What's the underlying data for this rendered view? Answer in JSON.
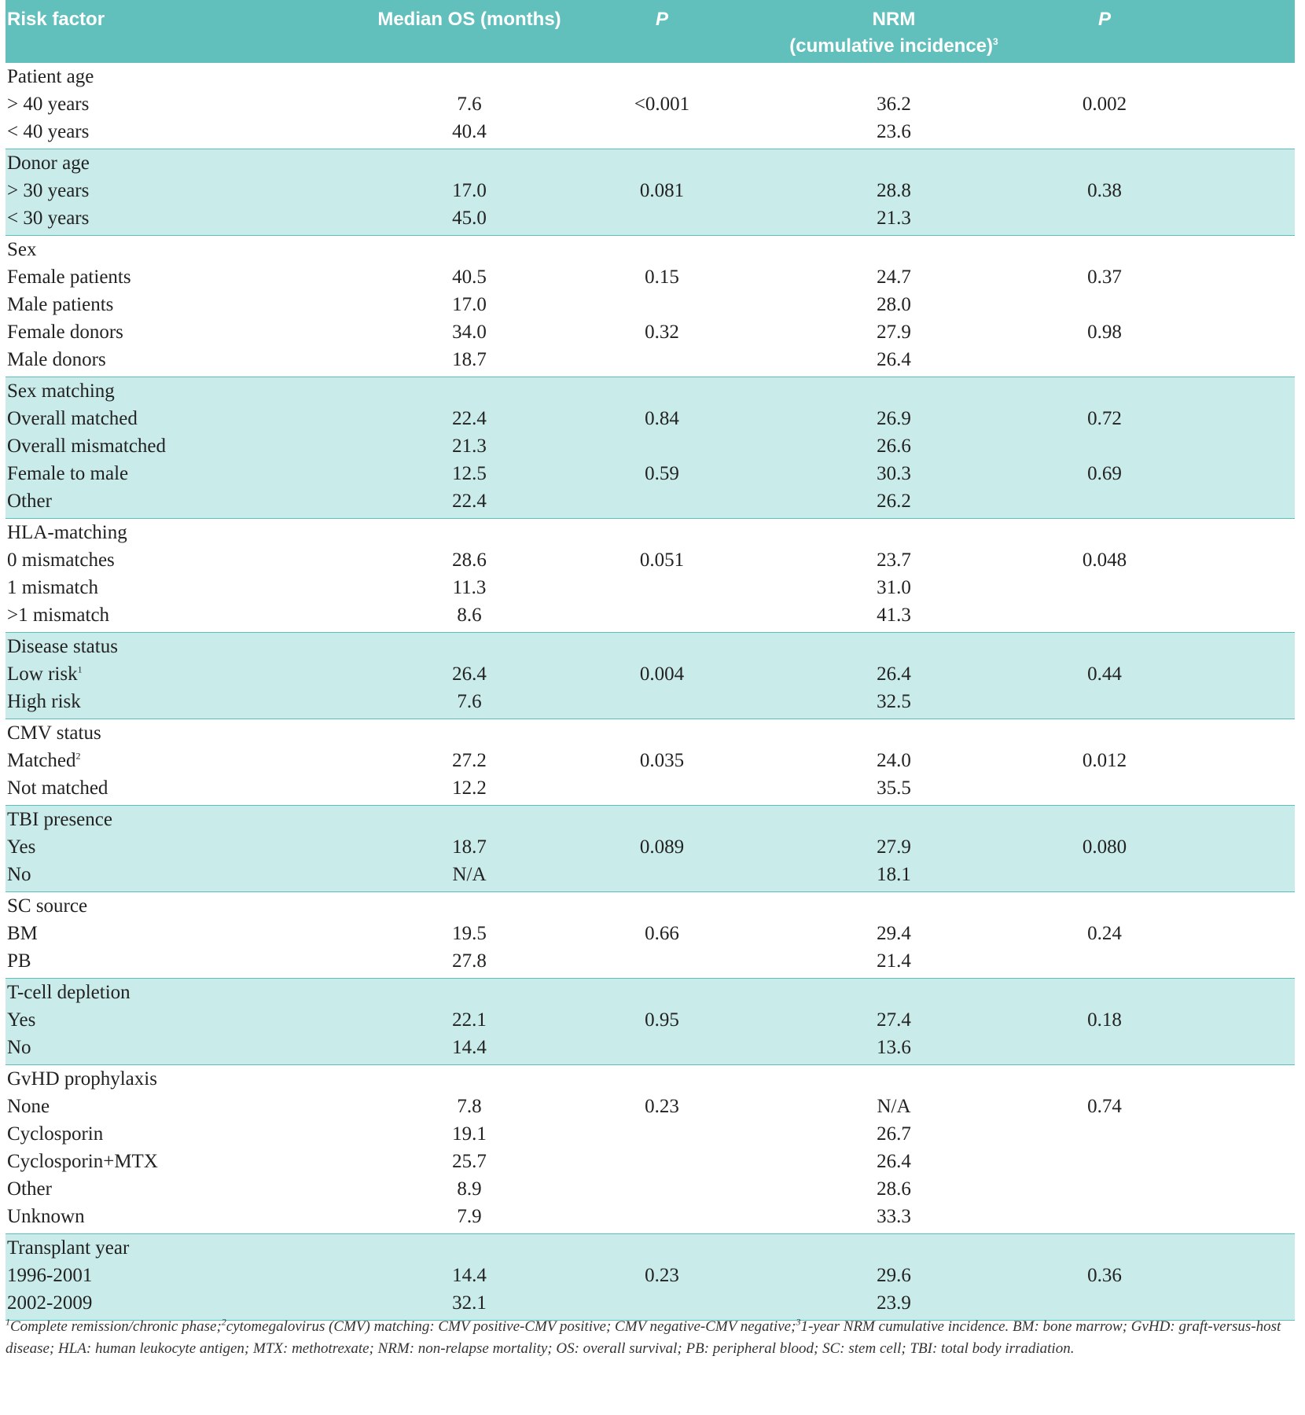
{
  "table": {
    "header": [
      "Risk factor",
      "Median OS (months)",
      "P",
      "NRM\n(cumulative incidence)",
      "P"
    ],
    "header_sup": "3",
    "groups": [
      {
        "title": "Patient age",
        "rows": [
          [
            "> 40 years",
            "7.6",
            "<0.001",
            "36.2",
            "0.002"
          ],
          [
            "< 40 years",
            "40.4",
            null,
            "23.6",
            null
          ]
        ]
      },
      {
        "title": "Donor age",
        "rows": [
          [
            "> 30 years",
            "17.0",
            "0.081",
            "28.8",
            "0.38"
          ],
          [
            "< 30 years",
            "45.0",
            null,
            "21.3",
            null
          ]
        ]
      },
      {
        "title": "Sex",
        "rows": [
          [
            "Female patients",
            "40.5",
            "0.15",
            "24.7",
            "0.37"
          ],
          [
            "Male patients",
            "17.0",
            null,
            "28.0",
            null
          ],
          [
            "Female donors",
            "34.0",
            "0.32",
            "27.9",
            "0.98"
          ],
          [
            "Male donors",
            "18.7",
            null,
            "26.4",
            null
          ]
        ]
      },
      {
        "title": "Sex matching",
        "rows": [
          [
            "Overall matched",
            "22.4",
            "0.84",
            "26.9",
            "0.72"
          ],
          [
            "Overall mismatched",
            "21.3",
            null,
            "26.6",
            null
          ],
          [
            "Female to male",
            "12.5",
            "0.59",
            "30.3",
            "0.69"
          ],
          [
            "Other",
            "22.4",
            null,
            "26.2",
            null
          ]
        ]
      },
      {
        "title": "HLA-matching",
        "rows": [
          [
            "0 mismatches",
            "28.6",
            "0.051",
            "23.7",
            "0.048"
          ],
          [
            "1 mismatch",
            "11.3",
            null,
            "31.0",
            null
          ],
          [
            ">1 mismatch",
            "8.6",
            null,
            "41.3",
            null
          ]
        ]
      },
      {
        "title": "Disease status",
        "rows": [
          [
            "Low risk",
            "26.4",
            "0.004",
            "26.4",
            "0.44"
          ],
          [
            "High risk",
            "7.6",
            null,
            "32.5",
            null
          ]
        ],
        "sups": {
          "0": "1"
        }
      },
      {
        "title": "CMV status",
        "rows": [
          [
            "Matched",
            "27.2",
            "0.035",
            "24.0",
            "0.012"
          ],
          [
            "Not matched",
            "12.2",
            null,
            "35.5",
            null
          ]
        ],
        "sups": {
          "0": "2"
        }
      },
      {
        "title": "TBI presence",
        "rows": [
          [
            "Yes",
            "18.7",
            "0.089",
            "27.9",
            "0.080"
          ],
          [
            "No",
            "N/A",
            null,
            "18.1",
            null
          ]
        ]
      },
      {
        "title": "SC source",
        "rows": [
          [
            "BM",
            "19.5",
            "0.66",
            "29.4",
            "0.24"
          ],
          [
            "PB",
            "27.8",
            null,
            "21.4",
            null
          ]
        ]
      },
      {
        "title": "T-cell depletion",
        "rows": [
          [
            "Yes",
            "22.1",
            "0.95",
            "27.4",
            "0.18"
          ],
          [
            "No",
            "14.4",
            null,
            "13.6",
            null
          ]
        ]
      },
      {
        "title": "GvHD prophylaxis",
        "rows": [
          [
            "None",
            "7.8",
            "0.23",
            "N/A",
            "0.74"
          ],
          [
            "Cyclosporin",
            "19.1",
            null,
            "26.7",
            null
          ],
          [
            "Cyclosporin+MTX",
            "25.7",
            null,
            "26.4",
            null
          ],
          [
            "Other",
            "8.9",
            null,
            "28.6",
            null
          ],
          [
            "Unknown",
            "7.9",
            null,
            "33.3",
            null
          ]
        ]
      },
      {
        "title": "Transplant year",
        "rows": [
          [
            "1996-2001",
            "14.4",
            "0.23",
            "29.6",
            "0.36"
          ],
          [
            "2002-2009",
            "32.1",
            null,
            "23.9",
            null
          ]
        ]
      }
    ],
    "footnotes": [
      {
        "mark": "1",
        "text": "Complete remission/chronic phase;"
      },
      {
        "mark": "2",
        "text": "cytomegalovirus (CMV) matching: CMV positive-CMV positive; CMV negative-CMV negative;"
      },
      {
        "mark": "3",
        "text": "1-year NRM cumulative incidence. BM: bone marrow; GvHD: graft-versus-host disease; HLA: human leukocyte antigen; MTX: methotrexate; NRM: non-relapse mortality; OS: overall survival; PB: peripheral blood; SC: stem cell; TBI: total body irradiation."
      }
    ]
  }
}
